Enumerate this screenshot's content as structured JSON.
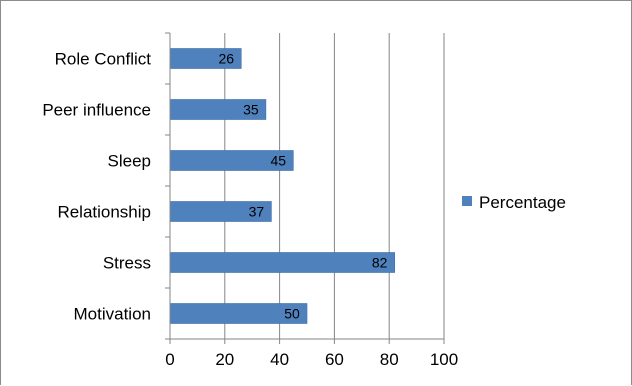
{
  "chart_data": {
    "type": "bar",
    "orientation": "horizontal",
    "categories": [
      "Role Conflict",
      "Peer influence",
      "Sleep",
      "Relationship",
      "Stress",
      "Motivation"
    ],
    "series": [
      {
        "name": "Percentage",
        "values": [
          26,
          35,
          45,
          37,
          82,
          50
        ],
        "color": "#4f81bd"
      }
    ],
    "xlim": [
      0,
      100
    ],
    "x_ticks": [
      "0",
      "20",
      "40",
      "60",
      "80",
      "100"
    ],
    "grid": true,
    "legend_position": "right",
    "data_labels": true
  }
}
